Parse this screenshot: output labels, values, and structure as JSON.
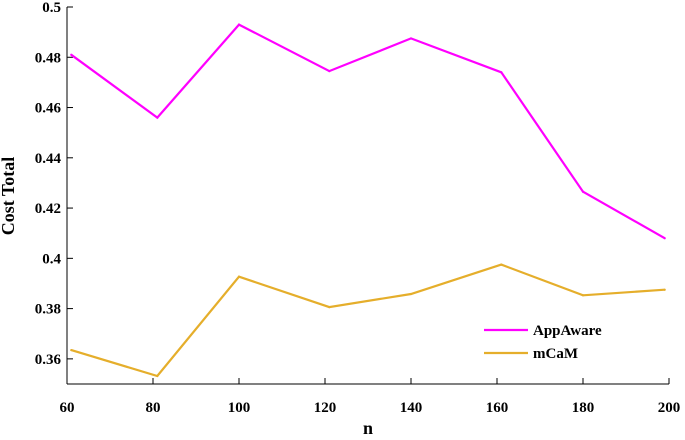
{
  "chart_data": {
    "type": "line",
    "title": "",
    "xlabel": "n",
    "ylabel": "Cost Total",
    "xlim": [
      60,
      200
    ],
    "ylim": [
      0.35,
      0.5
    ],
    "xticks": [
      60,
      80,
      100,
      120,
      140,
      160,
      180,
      200
    ],
    "yticks": [
      0.36,
      0.38,
      0.4,
      0.42,
      0.44,
      0.46,
      0.48,
      0.5
    ],
    "xtick_labels": [
      "60",
      "80",
      "100",
      "120",
      "140",
      "160",
      "180",
      "200"
    ],
    "ytick_labels": [
      "0.36",
      "0.38",
      "0.4",
      "0.42",
      "0.44",
      "0.46",
      "0.48",
      "0.5"
    ],
    "grid": false,
    "legend_position": "bottom-right",
    "x": [
      61,
      81,
      100,
      121,
      140,
      161,
      180,
      199
    ],
    "series": [
      {
        "name": "AppAware",
        "color": "#ff00ff",
        "values": [
          0.481,
          0.456,
          0.493,
          0.4745,
          0.4875,
          0.474,
          0.4265,
          0.408
        ]
      },
      {
        "name": "mCaM",
        "color": "#e5ae2b",
        "values": [
          0.3635,
          0.3532,
          0.3927,
          0.3806,
          0.3858,
          0.3975,
          0.3853,
          0.3875
        ]
      }
    ]
  }
}
